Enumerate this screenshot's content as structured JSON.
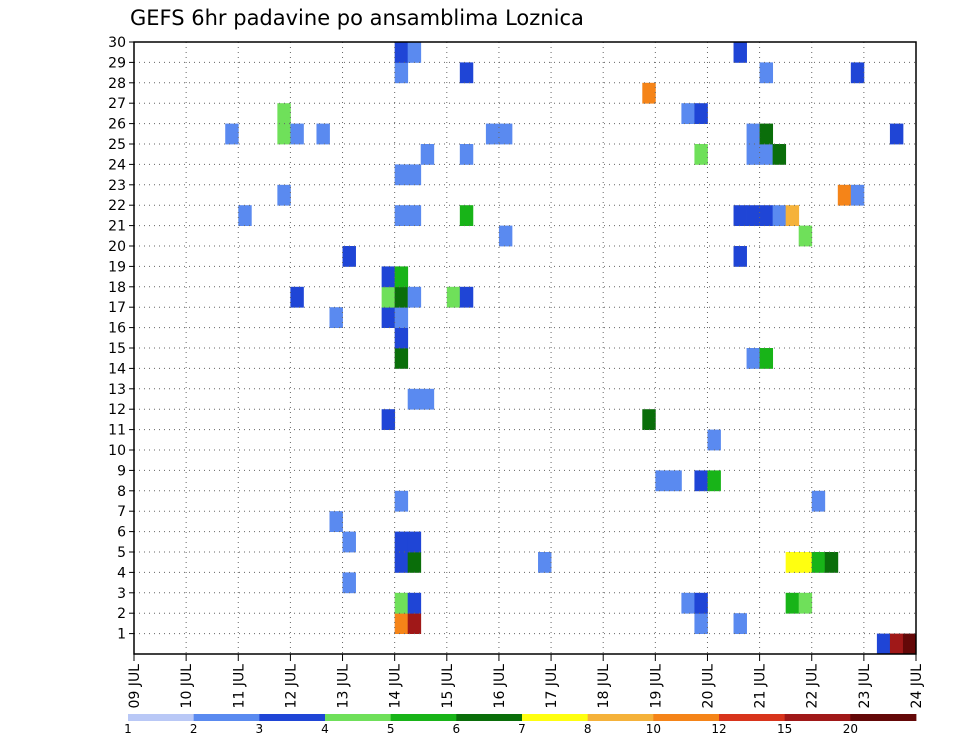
{
  "chart_data": {
    "type": "heatmap",
    "title": "GEFS 6hr padavine po ansamblima Loznica",
    "xlabel": "",
    "ylabel": "",
    "x_ticks": [
      "09 JUL",
      "10 JUL",
      "11 JUL",
      "12 JUL",
      "13 JUL",
      "14 JUL",
      "15 JUL",
      "16 JUL",
      "17 JUL",
      "18 JUL",
      "19 JUL",
      "20 JUL",
      "21 JUL",
      "22 JUL",
      "23 JUL",
      "24 JUL"
    ],
    "y_ticks": [
      "1",
      "2",
      "3",
      "4",
      "5",
      "6",
      "7",
      "8",
      "9",
      "10",
      "11",
      "12",
      "13",
      "14",
      "15",
      "16",
      "17",
      "18",
      "19",
      "20",
      "21",
      "22",
      "23",
      "24",
      "25",
      "26",
      "27",
      "28",
      "29",
      "30"
    ],
    "xlim": [
      0,
      60
    ],
    "ylim": [
      0,
      30
    ],
    "grid": true,
    "colorbar": {
      "colors": [
        "#b9c8f6",
        "#5a8af0",
        "#1f45d6",
        "#6fe05a",
        "#18b418",
        "#0a6e0a",
        "#ffff10",
        "#f5b23a",
        "#f58418",
        "#d8341c",
        "#a01818",
        "#640808"
      ],
      "labels": [
        "1",
        "2",
        "3",
        "4",
        "5",
        "6",
        "7",
        "8",
        "10",
        "12",
        "15",
        "20"
      ]
    },
    "cells": [
      [
        57,
        0,
        2
      ],
      [
        58,
        0,
        10
      ],
      [
        59,
        0,
        11
      ],
      [
        20,
        1,
        8
      ],
      [
        21,
        1,
        10
      ],
      [
        43,
        1,
        1
      ],
      [
        46,
        1,
        1
      ],
      [
        20,
        2,
        3
      ],
      [
        21,
        2,
        2
      ],
      [
        42,
        2,
        1
      ],
      [
        43,
        2,
        2
      ],
      [
        50,
        2,
        4
      ],
      [
        51,
        2,
        3
      ],
      [
        16,
        3,
        1
      ],
      [
        20,
        4,
        2
      ],
      [
        21,
        4,
        5
      ],
      [
        31,
        4,
        1
      ],
      [
        50,
        4,
        6
      ],
      [
        51,
        4,
        6
      ],
      [
        52,
        4,
        4
      ],
      [
        53,
        4,
        5
      ],
      [
        16,
        5,
        1
      ],
      [
        20,
        5,
        2
      ],
      [
        21,
        5,
        2
      ],
      [
        15,
        6,
        1
      ],
      [
        20,
        7,
        1
      ],
      [
        52,
        7,
        1
      ],
      [
        40,
        8,
        1
      ],
      [
        41,
        8,
        1
      ],
      [
        43,
        8,
        2
      ],
      [
        44,
        8,
        4
      ],
      [
        44,
        10,
        1
      ],
      [
        19,
        11,
        2
      ],
      [
        39,
        11,
        5
      ],
      [
        21,
        12,
        1
      ],
      [
        22,
        12,
        1
      ],
      [
        20,
        14,
        5
      ],
      [
        47,
        14,
        1
      ],
      [
        48,
        14,
        4
      ],
      [
        20,
        15,
        2
      ],
      [
        15,
        16,
        1
      ],
      [
        19,
        16,
        2
      ],
      [
        20,
        16,
        1
      ],
      [
        12,
        17,
        2
      ],
      [
        19,
        17,
        3
      ],
      [
        20,
        17,
        5
      ],
      [
        21,
        17,
        1
      ],
      [
        24,
        17,
        3
      ],
      [
        25,
        17,
        2
      ],
      [
        19,
        18,
        2
      ],
      [
        20,
        18,
        4
      ],
      [
        16,
        19,
        2
      ],
      [
        46,
        19,
        2
      ],
      [
        28,
        20,
        1
      ],
      [
        51,
        20,
        3
      ],
      [
        8,
        21,
        1
      ],
      [
        20,
        21,
        1
      ],
      [
        21,
        21,
        1
      ],
      [
        25,
        21,
        4
      ],
      [
        46,
        21,
        2
      ],
      [
        47,
        21,
        2
      ],
      [
        48,
        21,
        2
      ],
      [
        49,
        21,
        1
      ],
      [
        50,
        21,
        7
      ],
      [
        11,
        22,
        1
      ],
      [
        54,
        22,
        8
      ],
      [
        55,
        22,
        1
      ],
      [
        20,
        23,
        1
      ],
      [
        21,
        23,
        1
      ],
      [
        22,
        24,
        1
      ],
      [
        25,
        24,
        1
      ],
      [
        43,
        24,
        3
      ],
      [
        47,
        24,
        1
      ],
      [
        48,
        24,
        1
      ],
      [
        49,
        24,
        5
      ],
      [
        7,
        25,
        1
      ],
      [
        11,
        25,
        3
      ],
      [
        12,
        25,
        1
      ],
      [
        14,
        25,
        1
      ],
      [
        27,
        25,
        1
      ],
      [
        28,
        25,
        1
      ],
      [
        47,
        25,
        1
      ],
      [
        48,
        25,
        5
      ],
      [
        58,
        25,
        2
      ],
      [
        11,
        26,
        3
      ],
      [
        42,
        26,
        1
      ],
      [
        43,
        26,
        2
      ],
      [
        39,
        27,
        8
      ],
      [
        20,
        28,
        1
      ],
      [
        25,
        28,
        2
      ],
      [
        48,
        28,
        1
      ],
      [
        55,
        28,
        2
      ],
      [
        20,
        29,
        2
      ],
      [
        21,
        29,
        1
      ],
      [
        46,
        29,
        2
      ]
    ]
  }
}
